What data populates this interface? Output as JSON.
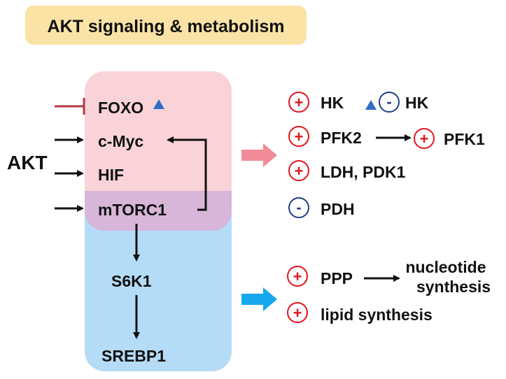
{
  "title": "AKT signaling & metabolism",
  "actor": "AKT",
  "targets": {
    "foxo": "FOXO",
    "cmyc": "c-Myc",
    "hif": "HIF",
    "mtorc1": "mTORC1",
    "s6k1": "S6K1",
    "srebp1": "SREBP1"
  },
  "glycolysis_effects": [
    {
      "sign": "+",
      "label": "HK"
    },
    {
      "sign": "+",
      "label": "PFK2"
    },
    {
      "sign": "+",
      "label": "PFK1"
    },
    {
      "sign": "+",
      "label": "LDH, PDK1"
    },
    {
      "sign": "-",
      "label": "PDH"
    },
    {
      "sign": "-",
      "label": "HK"
    }
  ],
  "lipid_effects": [
    {
      "sign": "+",
      "label": "PPP"
    },
    {
      "sign": "+",
      "label": "lipid synthesis"
    }
  ],
  "nucleotide_line1": "nucleotide",
  "nucleotide_line2": "synthesis",
  "colors": {
    "title_bg": "#fbe3a6",
    "upper_box": "#f9d3d8",
    "lower_box": "#b4dcf7",
    "overlap": "#d7b6d9",
    "plus": "#e0161e",
    "minus": "#1f3f86",
    "triangle": "#2e6cc5",
    "inhibit": "#b5383e",
    "pink_arrow": "#f28b98",
    "blue_arrow": "#17a7ec"
  }
}
